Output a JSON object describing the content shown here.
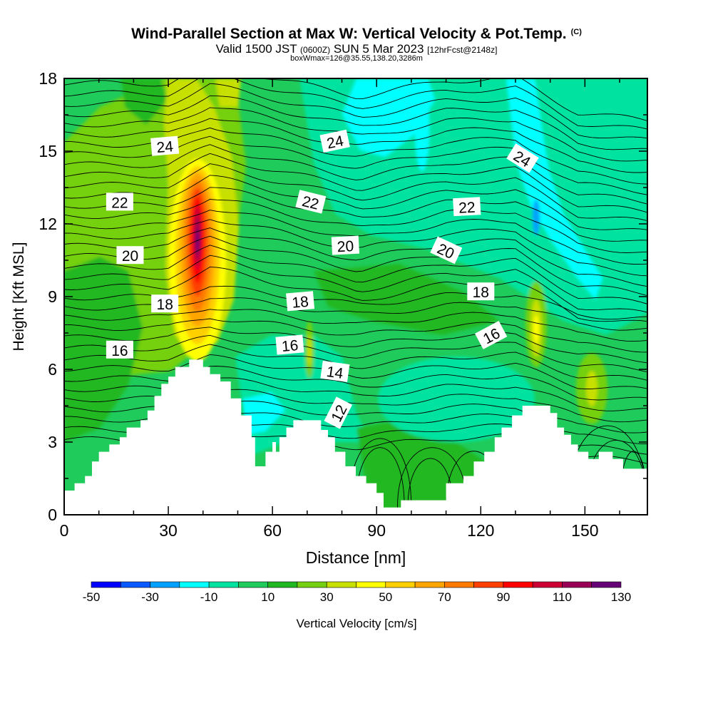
{
  "header": {
    "title": "Wind-Parallel Section at Max W: Vertical Velocity & Pot.Temp.",
    "copyright": "(C)",
    "valid_prefix": "Valid 1500 JST",
    "valid_utc": "(0600Z)",
    "valid_date": "SUN 5 Mar 2023",
    "forecast": "[12hrFcst@2148z]",
    "box_info": "boxWmax=126@35.55,138.20,3286m"
  },
  "chart_data": {
    "type": "heatmap",
    "title": "Wind-Parallel Section at Max W: Vertical Velocity & Pot.Temp.",
    "xlabel": "Distance [nm]",
    "ylabel": "Height [Kft MSL]",
    "xlim": [
      0,
      168
    ],
    "ylim": [
      0,
      18
    ],
    "x_ticks": [
      0,
      30,
      60,
      90,
      120,
      150
    ],
    "y_ticks": [
      0,
      3,
      6,
      9,
      12,
      15,
      18
    ],
    "grid": false,
    "colorbar": {
      "label": "Vertical Velocity [cm/s]",
      "placement": "bottom",
      "bounds": [
        -50,
        -40,
        -30,
        -20,
        -10,
        0,
        10,
        20,
        30,
        40,
        50,
        60,
        70,
        80,
        90,
        100,
        110,
        120,
        130
      ],
      "tick_labels": [
        "-50",
        "-30",
        "-10",
        "10",
        "30",
        "50",
        "70",
        "90",
        "110",
        "130"
      ],
      "colors": [
        "#0000ff",
        "#0a5aff",
        "#00a0ff",
        "#00ffff",
        "#00e3a0",
        "#1fcb5a",
        "#20b820",
        "#74d010",
        "#c8e000",
        "#ffff00",
        "#ffd000",
        "#ffa500",
        "#ff7a00",
        "#ff4000",
        "#ff0000",
        "#cc0033",
        "#990055",
        "#660077"
      ]
    },
    "terrain_kft": [
      [
        0,
        1.0
      ],
      [
        3,
        1.0
      ],
      [
        3,
        1.3
      ],
      [
        6,
        1.3
      ],
      [
        6,
        1.6
      ],
      [
        8,
        1.6
      ],
      [
        8,
        2.2
      ],
      [
        10,
        2.2
      ],
      [
        10,
        2.6
      ],
      [
        13,
        2.6
      ],
      [
        13,
        2.9
      ],
      [
        16,
        2.9
      ],
      [
        16,
        3.2
      ],
      [
        18,
        3.2
      ],
      [
        18,
        3.6
      ],
      [
        22,
        3.6
      ],
      [
        22,
        3.9
      ],
      [
        24,
        3.9
      ],
      [
        24,
        4.3
      ],
      [
        26,
        4.3
      ],
      [
        26,
        4.9
      ],
      [
        28,
        4.9
      ],
      [
        28,
        5.4
      ],
      [
        30,
        5.4
      ],
      [
        30,
        5.7
      ],
      [
        32,
        5.7
      ],
      [
        32,
        6.1
      ],
      [
        36,
        6.1
      ],
      [
        36,
        6.4
      ],
      [
        40,
        6.4
      ],
      [
        40,
        6.1
      ],
      [
        42,
        6.1
      ],
      [
        42,
        5.8
      ],
      [
        45,
        5.8
      ],
      [
        45,
        5.5
      ],
      [
        48,
        5.5
      ],
      [
        48,
        4.8
      ],
      [
        51,
        4.8
      ],
      [
        51,
        4.1
      ],
      [
        54,
        4.1
      ],
      [
        54,
        3.2
      ],
      [
        55,
        3.2
      ],
      [
        55,
        2.0
      ],
      [
        58,
        2.0
      ],
      [
        58,
        2.6
      ],
      [
        60,
        2.6
      ],
      [
        60,
        3.0
      ],
      [
        61,
        3.0
      ],
      [
        61,
        2.6
      ],
      [
        62,
        2.6
      ],
      [
        62,
        3.2
      ],
      [
        64,
        3.2
      ],
      [
        64,
        3.6
      ],
      [
        66,
        3.6
      ],
      [
        66,
        3.9
      ],
      [
        74,
        3.9
      ],
      [
        74,
        3.5
      ],
      [
        76,
        3.5
      ],
      [
        76,
        3.2
      ],
      [
        78,
        3.2
      ],
      [
        78,
        2.6
      ],
      [
        81,
        2.6
      ],
      [
        81,
        2.0
      ],
      [
        84,
        2.0
      ],
      [
        84,
        1.6
      ],
      [
        87,
        1.6
      ],
      [
        87,
        1.3
      ],
      [
        90,
        1.3
      ],
      [
        90,
        0.9
      ],
      [
        92,
        0.9
      ],
      [
        92,
        0.3
      ],
      [
        97,
        0.3
      ],
      [
        97,
        0.6
      ],
      [
        110,
        0.6
      ],
      [
        110,
        1.3
      ],
      [
        115,
        1.3
      ],
      [
        115,
        1.6
      ],
      [
        118,
        1.6
      ],
      [
        118,
        2.2
      ],
      [
        121,
        2.2
      ],
      [
        121,
        2.6
      ],
      [
        124,
        2.6
      ],
      [
        124,
        3.2
      ],
      [
        126,
        3.2
      ],
      [
        126,
        3.6
      ],
      [
        129,
        3.6
      ],
      [
        129,
        4.1
      ],
      [
        132,
        4.1
      ],
      [
        132,
        4.5
      ],
      [
        140,
        4.5
      ],
      [
        140,
        4.2
      ],
      [
        142,
        4.2
      ],
      [
        142,
        3.6
      ],
      [
        144,
        3.6
      ],
      [
        144,
        3.3
      ],
      [
        146,
        3.3
      ],
      [
        146,
        2.9
      ],
      [
        148,
        2.9
      ],
      [
        148,
        2.6
      ],
      [
        151,
        2.6
      ],
      [
        151,
        2.3
      ],
      [
        154,
        2.3
      ],
      [
        154,
        2.6
      ],
      [
        158,
        2.6
      ],
      [
        158,
        2.3
      ],
      [
        161,
        2.3
      ],
      [
        161,
        1.9
      ],
      [
        168,
        1.9
      ]
    ],
    "theta_labels": [
      {
        "text": "24",
        "x": 29,
        "y": 15.2,
        "angle": -5
      },
      {
        "text": "24",
        "x": 78,
        "y": 15.4,
        "angle": -12
      },
      {
        "text": "24",
        "x": 132,
        "y": 14.7,
        "angle": 32
      },
      {
        "text": "22",
        "x": 16,
        "y": 12.9,
        "angle": 0
      },
      {
        "text": "22",
        "x": 71,
        "y": 12.9,
        "angle": 14
      },
      {
        "text": "22",
        "x": 116,
        "y": 12.7,
        "angle": -3
      },
      {
        "text": "20",
        "x": 19,
        "y": 10.7,
        "angle": 0
      },
      {
        "text": "20",
        "x": 81,
        "y": 11.1,
        "angle": -3
      },
      {
        "text": "20",
        "x": 110,
        "y": 10.9,
        "angle": 25
      },
      {
        "text": "18",
        "x": 29,
        "y": 8.7,
        "angle": 0
      },
      {
        "text": "18",
        "x": 68,
        "y": 8.8,
        "angle": -5
      },
      {
        "text": "18",
        "x": 120,
        "y": 9.2,
        "angle": 0
      },
      {
        "text": "16",
        "x": 16,
        "y": 6.8,
        "angle": 0
      },
      {
        "text": "16",
        "x": 65,
        "y": 7.0,
        "angle": -5
      },
      {
        "text": "16",
        "x": 123,
        "y": 7.4,
        "angle": -28
      },
      {
        "text": "14",
        "x": 78,
        "y": 5.9,
        "angle": 8
      },
      {
        "text": "12",
        "x": 79,
        "y": 4.2,
        "angle": -63
      }
    ]
  }
}
